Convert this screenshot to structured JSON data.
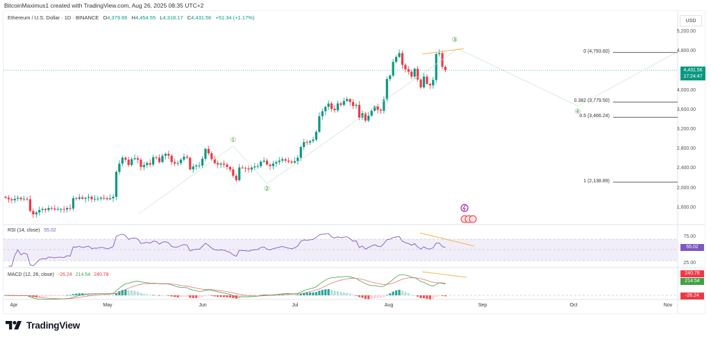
{
  "attribution": "BitcoinMaximus1 created with TradingView.com, Aug 26, 2025 08:35 UTC+2",
  "header": {
    "symbol": "Ethereum / U.S. Dollar · 1D · BINANCE",
    "open_label": "O",
    "open": "4,379.66",
    "high_label": "H",
    "high": "4,454.55",
    "low_label": "L",
    "low": "4,318.17",
    "close_label": "C",
    "close": "4,431.56",
    "change": "+51.34 (+1.17%)"
  },
  "currency": "USD",
  "price_tag": {
    "price": "4,431.56",
    "countdown": "17:24:47",
    "color": "#089981"
  },
  "colors": {
    "up": "#089981",
    "down": "#f23645",
    "rsi": "#7e57c2",
    "macd": "#43a047",
    "signal": "#e57373",
    "trendline": "#f5b358"
  },
  "rsi": {
    "label": "RSI (14, close)",
    "value": "55.02",
    "levels": [
      "75.00",
      "25.00"
    ],
    "tag": "55.02"
  },
  "macd": {
    "label": "MACD (12, 26, close)",
    "hist": "-26.24",
    "macd": "214.54",
    "signal": "240.78",
    "tags": {
      "signal": "240.78",
      "macd": "214.54",
      "hist": "-26.24"
    }
  },
  "fibonacci": [
    {
      "label": "0 (4,793.60)",
      "price": 4793.6
    },
    {
      "label": "0.382 (3,779.50)",
      "price": 3779.5
    },
    {
      "label": "0.5 (3,466.24)",
      "price": 3466.24
    },
    {
      "label": "1 (2,138.89)",
      "price": 2138.89
    }
  ],
  "wave_labels": [
    "①",
    "②",
    "③",
    "④"
  ],
  "logo": "TradingView",
  "chart_data": {
    "type": "candlestick",
    "title": "Ethereum / U.S. Dollar · 1D · BINANCE",
    "xlabel": "",
    "ylabel": "USD",
    "ylim": [
      1400,
      5300
    ],
    "y_ticks": [
      "5,200.00",
      "4,800.00",
      "4,000.00",
      "3,600.00",
      "3,200.00",
      "2,800.00",
      "2,400.00",
      "2,000.00",
      "1,600.00"
    ],
    "x_ticks": [
      "Apr",
      "May",
      "Jun",
      "Jul",
      "Aug",
      "Sep",
      "Oct",
      "Nov"
    ],
    "last_close": 4431.56,
    "annotations": [
      {
        "text": "①",
        "date": "Jun 10",
        "price": 2880
      },
      {
        "text": "②",
        "date": "Jun 22",
        "price": 2110
      },
      {
        "text": "③",
        "date": "Aug 23",
        "price": 4950
      },
      {
        "text": "④",
        "date": "Oct 1",
        "price": 3550
      }
    ],
    "closes": [
      1820,
      1790,
      1770,
      1800,
      1820,
      1790,
      1800,
      1790,
      1550,
      1480,
      1520,
      1570,
      1590,
      1570,
      1610,
      1600,
      1580,
      1590,
      1590,
      1580,
      1610,
      1600,
      1810,
      1800,
      1830,
      1800,
      1820,
      1840,
      1790,
      1800,
      1800,
      1820,
      1810,
      1790,
      1810,
      1840,
      2350,
      2520,
      2640,
      2600,
      2490,
      2610,
      2630,
      2600,
      2450,
      2490,
      2530,
      2500,
      2650,
      2640,
      2550,
      2680,
      2720,
      2680,
      2550,
      2520,
      2530,
      2600,
      2660,
      2640,
      2400,
      2460,
      2480,
      2480,
      2620,
      2820,
      2730,
      2610,
      2530,
      2500,
      2520,
      2500,
      2450,
      2400,
      2270,
      2180,
      2440,
      2430,
      2420,
      2400,
      2440,
      2460,
      2470,
      2560,
      2580,
      2500,
      2470,
      2520,
      2550,
      2580,
      2610,
      2580,
      2560,
      2540,
      2570,
      2640,
      2860,
      2960,
      2950,
      2980,
      3010,
      3170,
      3490,
      3590,
      3680,
      3750,
      3640,
      3610,
      3750,
      3720,
      3800,
      3840,
      3780,
      3700,
      3720,
      3460,
      3550,
      3400,
      3500,
      3600,
      3690,
      3620,
      3600,
      3830,
      4250,
      4320,
      4600,
      4700,
      4780,
      4540,
      4450,
      4400,
      4300,
      4460,
      4240,
      4080,
      4300,
      4150,
      4120,
      4230,
      4760,
      4780,
      4500,
      4431
    ]
  }
}
